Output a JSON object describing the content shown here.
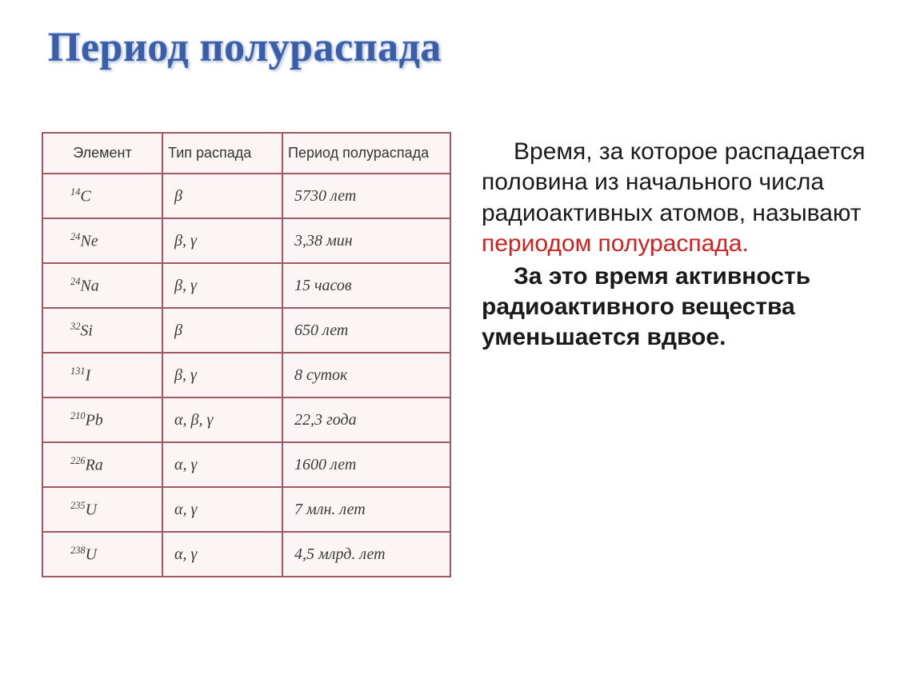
{
  "title": "Период полураспада",
  "table": {
    "background_color": "#fdf5f5",
    "border_color": "#9e5963",
    "header_fontsize": 18,
    "cell_fontsize": 20,
    "columns": [
      "Элемент",
      "Тип распада",
      "Период полураспада"
    ],
    "rows": [
      {
        "element_mass": "14",
        "element_sym": "C",
        "decay": "β",
        "period": "5730 лет"
      },
      {
        "element_mass": "24",
        "element_sym": "Ne",
        "decay": "β, γ",
        "period": "3,38 мин"
      },
      {
        "element_mass": "24",
        "element_sym": "Na",
        "decay": "β, γ",
        "period": "15 часов"
      },
      {
        "element_mass": "32",
        "element_sym": "Si",
        "decay": "β",
        "period": "650 лет"
      },
      {
        "element_mass": "131",
        "element_sym": "I",
        "decay": "β, γ",
        "period": "8 суток"
      },
      {
        "element_mass": "210",
        "element_sym": "Pb",
        "decay": "α, β, γ",
        "period": "22,3 года"
      },
      {
        "element_mass": "226",
        "element_sym": "Ra",
        "decay": "α, γ",
        "period": "1600 лет"
      },
      {
        "element_mass": "235",
        "element_sym": "U",
        "decay": "α, γ",
        "period": "7 млн. лет"
      },
      {
        "element_mass": "238",
        "element_sym": "U",
        "decay": "α, γ",
        "period": "4,5 млрд. лет"
      }
    ]
  },
  "definition": {
    "p1a": "Время, за которое распадается половина из начального числа радиоактивных атомов, называют ",
    "p1b": "периодом полураспада.",
    "p2a": "За это время активность радиоактивного вещества уменьшается вдвое."
  },
  "colors": {
    "title_color": "#3a5fa8",
    "text_color": "#1a1a1a",
    "highlight_color": "#d02020",
    "background": "#ffffff"
  }
}
